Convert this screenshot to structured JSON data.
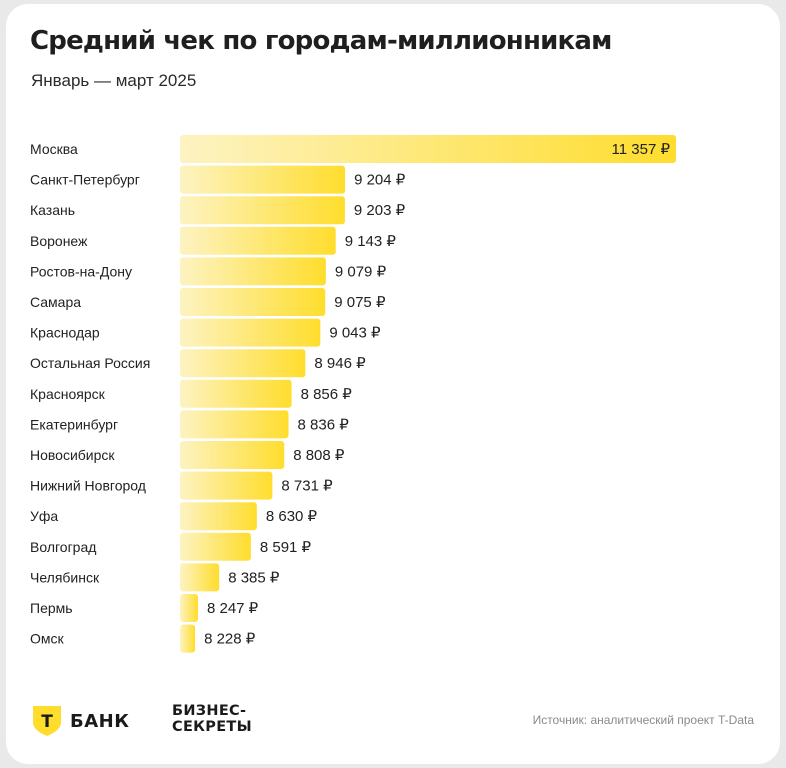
{
  "header": {
    "title": "Средний чек по городам-миллионникам",
    "subtitle": "Январь — март 2025"
  },
  "chart_data": {
    "type": "bar",
    "orientation": "horizontal",
    "categories": [
      "Москва",
      "Санкт-Петербург",
      "Казань",
      "Воронеж",
      "Ростов-на-Дону",
      "Самара",
      "Краснодар",
      "Остальная Россия",
      "Красноярск",
      "Екатеринбург",
      "Новосибирск",
      "Нижний Новгород",
      "Уфа",
      "Волгоград",
      "Челябинск",
      "Пермь",
      "Омск"
    ],
    "values": [
      11357,
      9204,
      9203,
      9143,
      9079,
      9075,
      9043,
      8946,
      8856,
      8836,
      8808,
      8731,
      8630,
      8591,
      8385,
      8247,
      8228
    ],
    "value_labels": [
      "11 357 ₽",
      "9 204 ₽",
      "9 203 ₽",
      "9 143 ₽",
      "9 079 ₽",
      "9 075 ₽",
      "9 043 ₽",
      "8 946 ₽",
      "8 856 ₽",
      "8 836 ₽",
      "8 808 ₽",
      "8 731 ₽",
      "8 630 ₽",
      "8 591 ₽",
      "8 385 ₽",
      "8 247 ₽",
      "8 228 ₽"
    ],
    "axis_min": 8130,
    "bar_color_light": "#fdf3c2",
    "bar_color": "#ffdd2d",
    "grid": false,
    "legend": "none"
  },
  "footer": {
    "brand_letter": "Т",
    "brand_name": "БАНК",
    "partner_line1": "БИЗНЕС-",
    "partner_line2": "СЕКРЕТЫ",
    "source": "Источник: аналитический проект T-Data",
    "brand_color": "#ffdd2d"
  }
}
